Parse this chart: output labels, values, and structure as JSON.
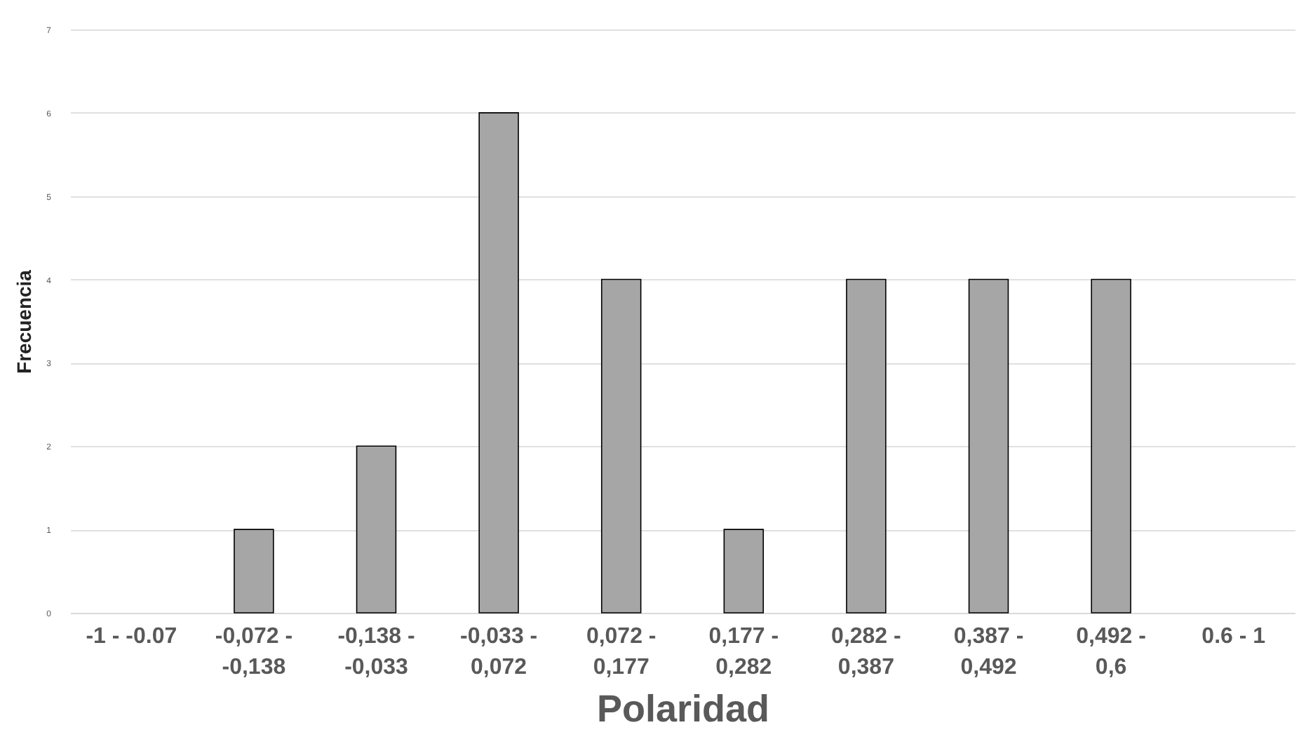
{
  "chart_data": {
    "type": "bar",
    "xlabel": "Polaridad",
    "ylabel": "Frecuencia",
    "categories": [
      "-1 - -0.07",
      "-0,072 - -0,138",
      "-0,138 - -0,033",
      "-0,033 - 0,072",
      "0,072 - 0,177",
      "0,177 - 0,282",
      "0,282 - 0,387",
      "0,387 - 0,492",
      "0,492 - 0,6",
      "0.6 - 1"
    ],
    "values": [
      0,
      1,
      2,
      6,
      4,
      1,
      4,
      4,
      4,
      0
    ],
    "color": "#a6a6a6",
    "ylim": [
      0,
      7
    ],
    "yticks": [
      0,
      1,
      2,
      3,
      4,
      5,
      6,
      7
    ],
    "grid": "y"
  }
}
